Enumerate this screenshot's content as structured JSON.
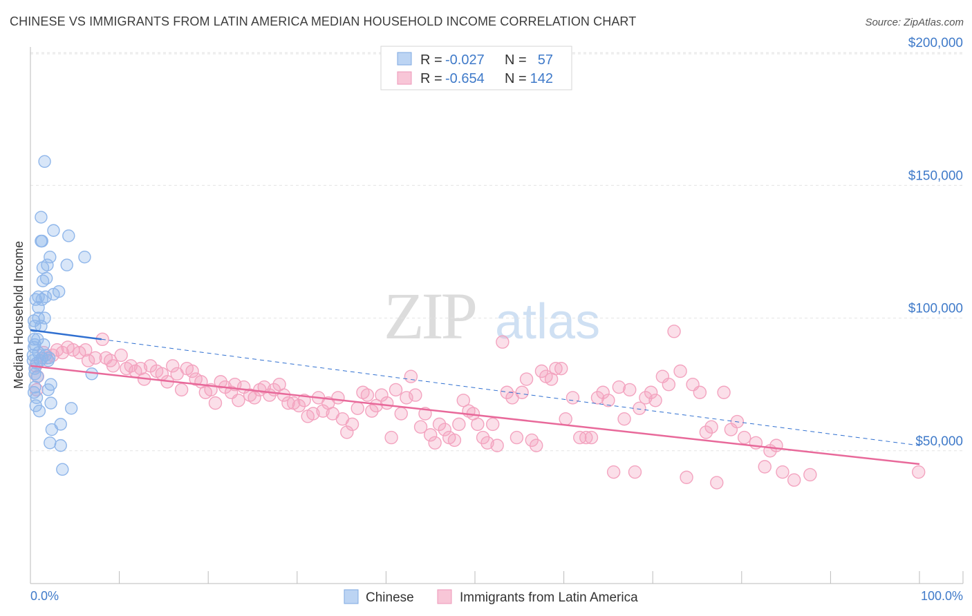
{
  "title": "CHINESE VS IMMIGRANTS FROM LATIN AMERICA MEDIAN HOUSEHOLD INCOME CORRELATION CHART",
  "source": "Source: ZipAtlas.com",
  "watermark": {
    "zip": "ZIP",
    "atlas": "atlas"
  },
  "colors": {
    "chinese": "#8fb6ea",
    "chinese_line": "#2f6fd0",
    "latin": "#f3a3bf",
    "latin_line": "#e8699a",
    "tick": "#3f7ac9"
  },
  "legend": {
    "rows": [
      {
        "r_label": "R =",
        "r_value": "-0.027",
        "n_label": "N =",
        "n_value": "57"
      },
      {
        "r_label": "R =",
        "r_value": "-0.654",
        "n_label": "N =",
        "n_value": "142"
      }
    ]
  },
  "chart_data": {
    "type": "scatter",
    "title": "CHINESE VS IMMIGRANTS FROM LATIN AMERICA MEDIAN HOUSEHOLD INCOME CORRELATION CHART",
    "xlabel": "",
    "ylabel": "Median Household Income",
    "xlim": [
      0,
      100
    ],
    "ylim": [
      0,
      205000
    ],
    "x_tick_labels": [
      "0.0%",
      "100.0%"
    ],
    "y_ticks": [
      {
        "value": 50000,
        "label": "$50,000"
      },
      {
        "value": 100000,
        "label": "$100,000"
      },
      {
        "value": 150000,
        "label": "$150,000"
      },
      {
        "value": 200000,
        "label": "$200,000"
      }
    ],
    "grid": true,
    "legend_position": "top-center",
    "series": [
      {
        "name": "Chinese",
        "r": -0.027,
        "n": 57,
        "trend": {
          "x0": 0,
          "y0": 95500,
          "x1": 100,
          "y1": 52000,
          "solid_until_x": 8
        },
        "points": [
          [
            1.6,
            159000
          ],
          [
            1.2,
            138000
          ],
          [
            2.6,
            133000
          ],
          [
            4.3,
            131000
          ],
          [
            1.3,
            129000
          ],
          [
            1.2,
            129000
          ],
          [
            6.1,
            123000
          ],
          [
            2.2,
            123000
          ],
          [
            1.9,
            120000
          ],
          [
            1.4,
            119000
          ],
          [
            4.1,
            120000
          ],
          [
            1.8,
            115000
          ],
          [
            1.4,
            114000
          ],
          [
            3.2,
            110000
          ],
          [
            2.6,
            109000
          ],
          [
            1.7,
            108000
          ],
          [
            0.6,
            107000
          ],
          [
            0.9,
            108000
          ],
          [
            1.3,
            107000
          ],
          [
            0.9,
            104000
          ],
          [
            0.9,
            100000
          ],
          [
            0.4,
            99000
          ],
          [
            1.6,
            100000
          ],
          [
            0.5,
            97000
          ],
          [
            1.2,
            97000
          ],
          [
            0.4,
            92000
          ],
          [
            0.8,
            92000
          ],
          [
            0.5,
            90000
          ],
          [
            1.5,
            90000
          ],
          [
            0.4,
            89000
          ],
          [
            0.9,
            87000
          ],
          [
            0.3,
            86000
          ],
          [
            1.3,
            85000
          ],
          [
            1.1,
            84000
          ],
          [
            2.0,
            84000
          ],
          [
            0.3,
            84000
          ],
          [
            2.1,
            85000
          ],
          [
            1.7,
            86000
          ],
          [
            0.7,
            83000
          ],
          [
            0.5,
            81000
          ],
          [
            0.5,
            79000
          ],
          [
            0.8,
            78000
          ],
          [
            6.9,
            79000
          ],
          [
            2.3,
            75000
          ],
          [
            0.5,
            74000
          ],
          [
            2.0,
            73000
          ],
          [
            0.4,
            72000
          ],
          [
            0.7,
            70000
          ],
          [
            2.3,
            68000
          ],
          [
            0.6,
            67000
          ],
          [
            4.6,
            66000
          ],
          [
            3.4,
            60000
          ],
          [
            2.4,
            58000
          ],
          [
            2.2,
            53000
          ],
          [
            3.4,
            52000
          ],
          [
            3.6,
            43000
          ],
          [
            1.0,
            65000
          ]
        ]
      },
      {
        "name": "Immigrants from Latin America",
        "r": -0.654,
        "n": 142,
        "trend": {
          "x0": 0,
          "y0": 82000,
          "x1": 100,
          "y1": 45000
        },
        "points": [
          [
            0.6,
            82000
          ],
          [
            0.8,
            78000
          ],
          [
            0.7,
            73000
          ],
          [
            1.5,
            87000
          ],
          [
            1.8,
            85000
          ],
          [
            2.5,
            86000
          ],
          [
            3.0,
            88000
          ],
          [
            3.6,
            87000
          ],
          [
            4.2,
            89000
          ],
          [
            4.8,
            88000
          ],
          [
            5.5,
            87000
          ],
          [
            6.2,
            88000
          ],
          [
            6.5,
            84000
          ],
          [
            7.3,
            85000
          ],
          [
            8.1,
            92000
          ],
          [
            8.5,
            85000
          ],
          [
            9.0,
            84000
          ],
          [
            9.3,
            82000
          ],
          [
            10.2,
            86000
          ],
          [
            10.8,
            81000
          ],
          [
            11.3,
            82000
          ],
          [
            11.8,
            80000
          ],
          [
            12.4,
            81000
          ],
          [
            12.8,
            77000
          ],
          [
            13.5,
            82000
          ],
          [
            14.2,
            80000
          ],
          [
            14.8,
            79000
          ],
          [
            15.4,
            76000
          ],
          [
            16.0,
            82000
          ],
          [
            16.5,
            79000
          ],
          [
            17.0,
            73000
          ],
          [
            17.6,
            81000
          ],
          [
            18.2,
            80000
          ],
          [
            18.6,
            77000
          ],
          [
            19.2,
            76000
          ],
          [
            19.7,
            72000
          ],
          [
            20.3,
            73000
          ],
          [
            20.8,
            68000
          ],
          [
            21.4,
            76000
          ],
          [
            21.9,
            74000
          ],
          [
            22.6,
            72000
          ],
          [
            23.0,
            75000
          ],
          [
            23.4,
            69000
          ],
          [
            24.0,
            74000
          ],
          [
            24.7,
            71000
          ],
          [
            25.2,
            70000
          ],
          [
            25.8,
            73000
          ],
          [
            26.3,
            74000
          ],
          [
            26.9,
            71000
          ],
          [
            27.4,
            73000
          ],
          [
            28.0,
            75000
          ],
          [
            28.5,
            71000
          ],
          [
            29.0,
            68000
          ],
          [
            29.6,
            68000
          ],
          [
            30.2,
            67000
          ],
          [
            30.8,
            69000
          ],
          [
            31.2,
            63000
          ],
          [
            31.8,
            64000
          ],
          [
            32.4,
            70000
          ],
          [
            32.9,
            65000
          ],
          [
            33.5,
            68000
          ],
          [
            34.0,
            64000
          ],
          [
            34.6,
            70000
          ],
          [
            35.1,
            62000
          ],
          [
            35.6,
            57000
          ],
          [
            36.2,
            60000
          ],
          [
            36.8,
            66000
          ],
          [
            37.4,
            72000
          ],
          [
            37.9,
            71000
          ],
          [
            38.4,
            65000
          ],
          [
            38.9,
            67000
          ],
          [
            39.5,
            71000
          ],
          [
            40.1,
            68000
          ],
          [
            40.6,
            55000
          ],
          [
            41.1,
            73000
          ],
          [
            41.7,
            64000
          ],
          [
            42.3,
            70000
          ],
          [
            42.8,
            78000
          ],
          [
            43.3,
            71000
          ],
          [
            43.9,
            59000
          ],
          [
            44.4,
            64000
          ],
          [
            45.0,
            56000
          ],
          [
            45.5,
            53000
          ],
          [
            46.0,
            60000
          ],
          [
            46.6,
            58000
          ],
          [
            47.1,
            55000
          ],
          [
            47.7,
            54000
          ],
          [
            48.2,
            60000
          ],
          [
            48.7,
            69000
          ],
          [
            49.3,
            65000
          ],
          [
            49.8,
            64000
          ],
          [
            50.3,
            60000
          ],
          [
            50.9,
            55000
          ],
          [
            51.4,
            53000
          ],
          [
            52.0,
            60000
          ],
          [
            52.5,
            52000
          ],
          [
            53.1,
            91000
          ],
          [
            53.6,
            72000
          ],
          [
            54.2,
            70000
          ],
          [
            54.7,
            55000
          ],
          [
            55.3,
            72000
          ],
          [
            55.8,
            77000
          ],
          [
            56.4,
            54000
          ],
          [
            56.9,
            52000
          ],
          [
            57.5,
            80000
          ],
          [
            58.0,
            78000
          ],
          [
            58.6,
            77000
          ],
          [
            59.1,
            81000
          ],
          [
            59.7,
            81000
          ],
          [
            60.2,
            62000
          ],
          [
            61.0,
            70000
          ],
          [
            61.8,
            55000
          ],
          [
            62.5,
            55000
          ],
          [
            63.1,
            55000
          ],
          [
            63.8,
            70000
          ],
          [
            64.4,
            72000
          ],
          [
            65.0,
            69000
          ],
          [
            65.6,
            42000
          ],
          [
            66.2,
            74000
          ],
          [
            66.8,
            62000
          ],
          [
            67.4,
            73000
          ],
          [
            68.0,
            42000
          ],
          [
            68.5,
            66000
          ],
          [
            69.2,
            70000
          ],
          [
            69.8,
            72000
          ],
          [
            70.3,
            69000
          ],
          [
            71.1,
            78000
          ],
          [
            71.8,
            75000
          ],
          [
            72.4,
            95000
          ],
          [
            73.1,
            80000
          ],
          [
            73.8,
            40000
          ],
          [
            74.5,
            75000
          ],
          [
            75.3,
            72000
          ],
          [
            76.0,
            57000
          ],
          [
            76.6,
            59000
          ],
          [
            77.2,
            38000
          ],
          [
            78.0,
            72000
          ],
          [
            78.8,
            58000
          ],
          [
            79.5,
            61000
          ],
          [
            80.3,
            55000
          ],
          [
            81.6,
            53000
          ],
          [
            82.6,
            44000
          ],
          [
            83.2,
            50000
          ],
          [
            83.9,
            52000
          ],
          [
            84.6,
            42000
          ],
          [
            85.9,
            39000
          ],
          [
            87.7,
            41000
          ],
          [
            99.9,
            42000
          ]
        ]
      }
    ]
  },
  "bottom_legend": [
    {
      "label": "Chinese"
    },
    {
      "label": "Immigrants from Latin America"
    }
  ]
}
